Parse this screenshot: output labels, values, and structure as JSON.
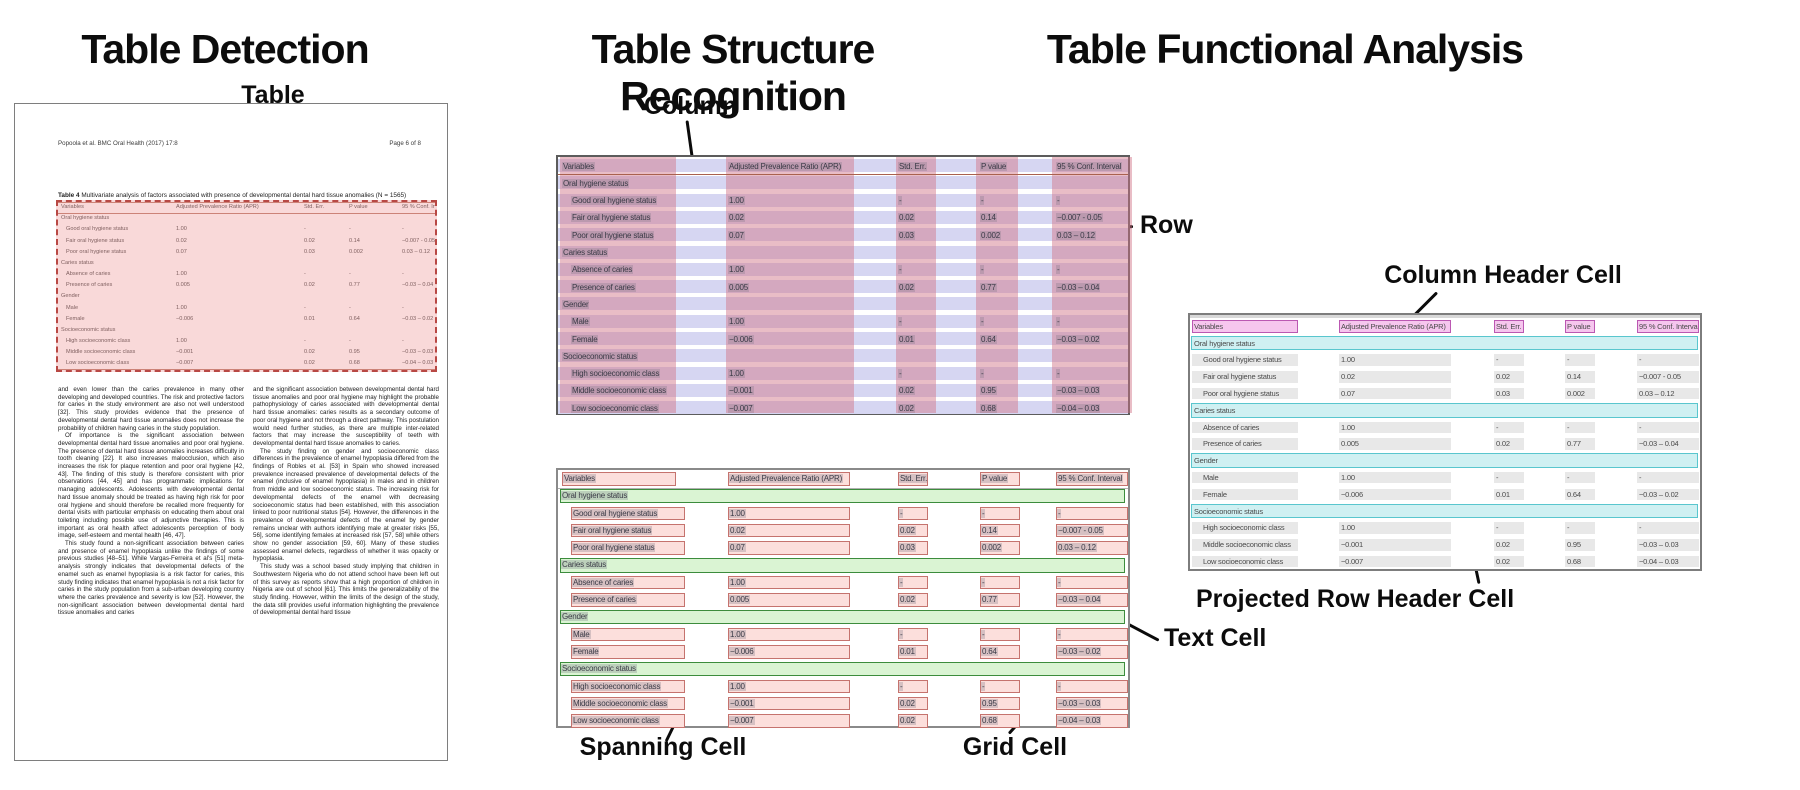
{
  "figure": {
    "panels": [
      {
        "id": "detection",
        "title": "Table Detection"
      },
      {
        "id": "structure",
        "title": "Table Structure Recognition"
      },
      {
        "id": "functional",
        "title": "Table Functional Analysis"
      }
    ],
    "callouts": {
      "table": "Table",
      "column": "Column",
      "row": "Row",
      "spanning_cell": "Spanning Cell",
      "grid_cell": "Grid Cell",
      "text_cell": "Text Cell",
      "column_header_cell": "Column Header Cell",
      "projected_row_header_cell": "Projected Row Header Cell"
    }
  },
  "document": {
    "header_left": "Popoola et al. BMC Oral Health  (2017) 17:8",
    "header_right": "Page 6 of 8",
    "caption_label": "Table 4",
    "caption_text": " Multivariate analysis of factors associated with presence of developmental dental hard tissue anomalies (N = 1565)",
    "body_left": [
      "and even lower than the caries prevalence in many other developing and developed countries. The risk and protective factors for caries in the study environment are also not well understood [32]. This study provides evidence that the presence of developmental dental hard tissue anomalies does not increase the probability of children having caries in the study population.",
      "Of importance is the significant association between developmental dental hard tissue anomalies and poor oral hygiene. The presence of dental hard tissue anomalies increases difficulty in tooth cleaning [22]. It also increases malocclusion, which also increases the risk for plaque retention and poor oral hygiene [42, 43]. The finding of this study is therefore consistent with prior observations [44, 45] and has programmatic implications for managing adolescents. Adolescents with developmental dental hard tissue anomaly should be treated as having high risk for poor oral hygiene and should therefore be recalled more frequently for dental visits with particular emphasis on educating them about oral toileting including possible use of adjunctive therapies. This is important as oral health affect adolescents perception of body image, self-esteem and mental health [46, 47].",
      "This study found a non-significant association between caries and presence of enamel hypoplasia unlike the findings of some previous studies [48–51]. While Vargas-Ferreira et al's [51] meta-analysis strongly indicates that developmental defects of the enamel such as enamel hypoplasia is a risk factor for caries, this study finding indicates that enamel hypoplasia is not a risk factor for caries in the study population from a sub-urban developing country where the caries prevalence and severity is low [52]. However, the non-significant association between developmental dental hard tissue anomalies and caries"
    ],
    "body_right": [
      "and the significant association between developmental dental hard tissue anomalies and poor oral hygiene may highlight the probable pathophysiology of caries associated with developmental dental hard tissue anomalies: caries results as a secondary outcome of poor oral hygiene and not through a direct pathway. This postulation would need further studies, as there are multiple inter-related factors that may increase the susceptibility of teeth with developmental dental hard tissue anomalies to caries.",
      "The study finding on gender and socioeconomic class differences in the prevalence of enamel hypoplasia differed from the findings of Robles et al. [53] in Spain who showed increased prevalence increased prevalence of developmental defects of the enamel (inclusive of enamel hypoplasia) in males and in children from middle and low socioeconomic status. The increasing risk for developmental defects of the enamel with decreasing socioeconomic status had been established, with this association linked to poor nutritional status [54]. However, the differences in the prevalence of developmental defects of the enamel by gender remains unclear with authors identifying male at greater risks [55, 56], some identifying females at increased risk [57, 58] while others show no gender association [59, 60]. Many of these studies assessed enamel defects, regardless of whether it was opacity or hypoplasia.",
      "This study was a school based study implying that children in Southwestern Nigeria who do not attend school have been left out of this survey as reports show that a high proportion of children in Nigeria are out of school [61]. This limits the generalizability of the study finding. However, within the limits of the design of the study, the data still provides useful information highlighting the prevalence of developmental dental hard tissue"
    ]
  },
  "table": {
    "columns": [
      "Variables",
      "Adjusted Prevalence Ratio (APR)",
      "Std. Err.",
      "P value",
      "95 % Conf. Interval"
    ],
    "rows": [
      {
        "type": "section",
        "label": "Oral hygiene status"
      },
      {
        "type": "data",
        "label": "Good oral hygiene status",
        "values": [
          "1.00",
          "-",
          "-",
          "-"
        ]
      },
      {
        "type": "data",
        "label": "Fair oral hygiene status",
        "values": [
          "0.02",
          "0.02",
          "0.14",
          "−0.007 - 0.05"
        ]
      },
      {
        "type": "data",
        "label": "Poor oral hygiene status",
        "values": [
          "0.07",
          "0.03",
          "0.002",
          "0.03 – 0.12"
        ]
      },
      {
        "type": "section",
        "label": "Caries status"
      },
      {
        "type": "data",
        "label": "Absence of caries",
        "values": [
          "1.00",
          "-",
          "-",
          "-"
        ]
      },
      {
        "type": "data",
        "label": "Presence of caries",
        "values": [
          "0.005",
          "0.02",
          "0.77",
          "−0.03 – 0.04"
        ]
      },
      {
        "type": "section",
        "label": "Gender"
      },
      {
        "type": "data",
        "label": "Male",
        "values": [
          "1.00",
          "-",
          "-",
          "-"
        ]
      },
      {
        "type": "data",
        "label": "Female",
        "values": [
          "−0.006",
          "0.01",
          "0.64",
          "−0.03 – 0.02"
        ]
      },
      {
        "type": "section",
        "label": "Socioeconomic status"
      },
      {
        "type": "data",
        "label": "High socioeconomic class",
        "values": [
          "1.00",
          "-",
          "-",
          "-"
        ]
      },
      {
        "type": "data",
        "label": "Middle socioeconomic class",
        "values": [
          "−0.001",
          "0.02",
          "0.95",
          "−0.03 – 0.03"
        ]
      },
      {
        "type": "data",
        "label": "Low socioeconomic class",
        "values": [
          "−0.007",
          "0.02",
          "0.68",
          "−0.04 – 0.03"
        ]
      }
    ]
  },
  "colors": {
    "annotation": "#0b0b0b",
    "detection_box_fill": "#efa0a0",
    "detection_box_border": "#b84844",
    "structure_row_band": "#d6d6f2",
    "structure_column_band": "#d07688",
    "grid_cell_fill": "#fcdfdc",
    "grid_cell_border": "#c5736e",
    "spanning_cell_fill": "#daf4d3",
    "spanning_cell_border": "#3c8c3c",
    "column_header_cell_fill": "#f6c6ee",
    "column_header_cell_border": "#bb58b2",
    "projected_row_header_fill": "#cff0f2",
    "projected_row_header_border": "#59c6ce",
    "functional_cell_fill": "#e8e8e8",
    "text_cell_highlight": "#8c8c9b"
  }
}
